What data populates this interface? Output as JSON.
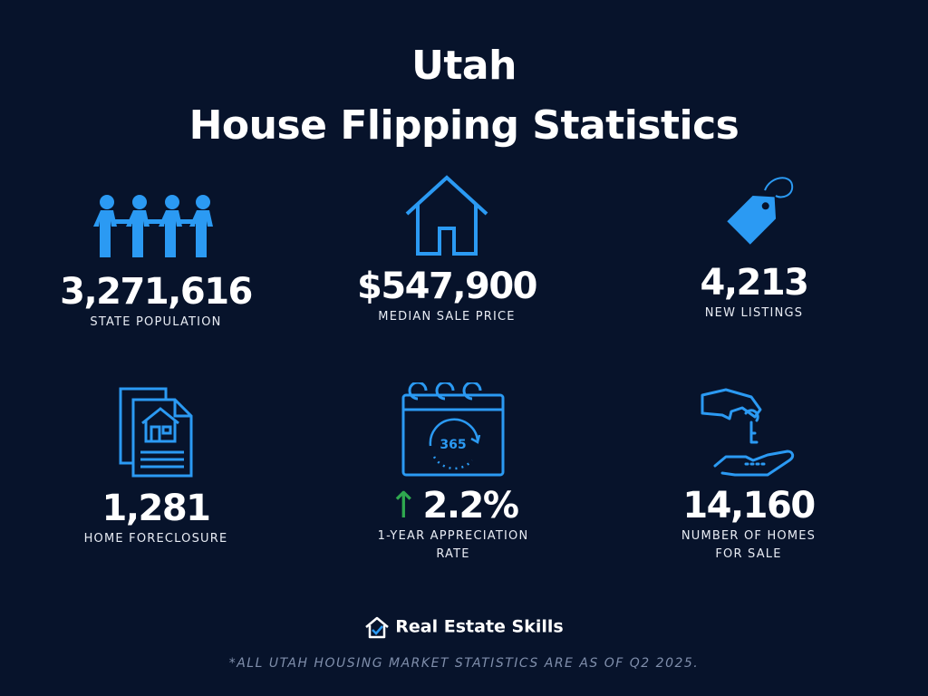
{
  "header": {
    "line1": "Utah",
    "line2": "House Flipping Statistics"
  },
  "accent_color": "#2b9af3",
  "stats": [
    {
      "value": "3,271,616",
      "label": "STATE POPULATION",
      "icon": "people-chain-icon"
    },
    {
      "value": "$547,900",
      "label": "MEDIAN SALE PRICE",
      "icon": "house-outline-icon"
    },
    {
      "value": "4,213",
      "label": "NEW LISTINGS",
      "icon": "price-tag-icon"
    },
    {
      "value": "1,281",
      "label": "HOME FORECLOSURE",
      "icon": "house-document-icon"
    },
    {
      "value": "2.2%",
      "label_line1": "1-YEAR APPRECIATION",
      "label_line2": "RATE",
      "trend_arrow": "↑",
      "icon": "calendar-365-icon"
    },
    {
      "value": "14,160",
      "label_line1": "NUMBER OF HOMES",
      "label_line2": "FOR SALE",
      "icon": "hand-key-icon"
    }
  ],
  "brand": {
    "name": "Real Estate Skills"
  },
  "footnote": "*ALL UTAH HOUSING MARKET STATISTICS ARE AS OF Q2 2025."
}
